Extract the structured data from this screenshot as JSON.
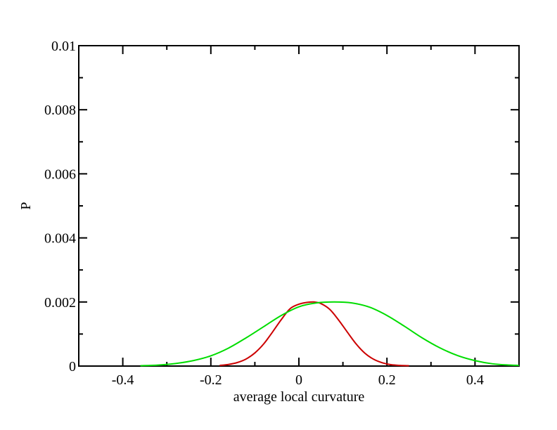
{
  "chart_data": {
    "type": "line",
    "xlabel": "average local curvature",
    "ylabel": "P",
    "xlim": [
      -0.5,
      0.5
    ],
    "ylim": [
      0,
      0.01
    ],
    "x_ticks": [
      -0.4,
      -0.2,
      0,
      0.2,
      0.4
    ],
    "x_tick_labels": [
      "-0.4",
      "-0.2",
      "0",
      "0.2",
      "0.4"
    ],
    "y_ticks": [
      0,
      0.002,
      0.004,
      0.006,
      0.008,
      0.01
    ],
    "y_tick_labels": [
      "0",
      "0.002",
      "0.004",
      "0.006",
      "0.008",
      "0.01"
    ],
    "grid": false,
    "series": [
      {
        "color": "#cc0000",
        "x": [
          -0.18,
          -0.16,
          -0.14,
          -0.12,
          -0.1,
          -0.08,
          -0.06,
          -0.04,
          -0.02,
          0.0,
          0.02,
          0.035,
          0.05,
          0.07,
          0.09,
          0.11,
          0.13,
          0.15,
          0.17,
          0.19,
          0.21,
          0.23,
          0.25
        ],
        "y": [
          2e-05,
          5e-05,
          0.00011,
          0.00022,
          0.00041,
          0.00069,
          0.00106,
          0.00145,
          0.00179,
          0.00193,
          0.00199,
          0.002,
          0.00195,
          0.00177,
          0.00144,
          0.00106,
          0.00069,
          0.0004,
          0.00021,
          0.0001,
          4e-05,
          2e-05,
          1e-05
        ]
      },
      {
        "color": "#00dd00",
        "x": [
          -0.36,
          -0.32,
          -0.28,
          -0.24,
          -0.2,
          -0.16,
          -0.12,
          -0.08,
          -0.04,
          0.0,
          0.04,
          0.08,
          0.12,
          0.16,
          0.2,
          0.24,
          0.28,
          0.32,
          0.36,
          0.4,
          0.44,
          0.48,
          0.5
        ],
        "y": [
          1e-05,
          3e-05,
          8e-05,
          0.00017,
          0.00032,
          0.00056,
          0.00088,
          0.00123,
          0.00158,
          0.00185,
          0.00197,
          0.002,
          0.00197,
          0.00184,
          0.00158,
          0.00124,
          0.00088,
          0.00057,
          0.00033,
          0.00017,
          7e-05,
          3e-05,
          2e-05
        ]
      }
    ]
  }
}
